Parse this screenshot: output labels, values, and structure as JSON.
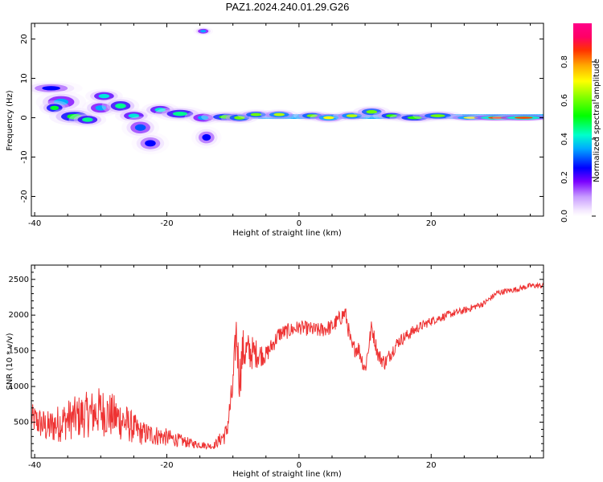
{
  "title": "PAZ1.2024.240.01.29.G26",
  "chart_data": [
    {
      "type": "heatmap",
      "xlabel": "Height of straight line (km)",
      "ylabel": "Frequency (Hz)",
      "xlim": [
        -40.5,
        37
      ],
      "ylim": [
        -25,
        24
      ],
      "xticks": [
        -40,
        -20,
        0,
        20
      ],
      "yticks": [
        -20,
        -10,
        0,
        10,
        20
      ],
      "colorbar": {
        "label": "Normalized spectral amplitude",
        "range": [
          0,
          1
        ],
        "ticks": [
          "0.0",
          "0.2",
          "0.4",
          "0.6",
          "0.8"
        ],
        "tick_values": [
          0.0,
          0.2,
          0.4,
          0.6,
          0.8
        ]
      },
      "blobs": [
        {
          "x": -37.5,
          "y": 7.5,
          "w": 2.5,
          "h": 1.0,
          "amp": 0.25
        },
        {
          "x": -36.0,
          "y": 4.0,
          "w": 2.0,
          "h": 1.5,
          "amp": 0.35
        },
        {
          "x": -37.0,
          "y": 2.5,
          "w": 1.2,
          "h": 1.0,
          "amp": 0.5
        },
        {
          "x": -34.0,
          "y": 0.3,
          "w": 2.0,
          "h": 1.2,
          "amp": 0.5
        },
        {
          "x": -32.0,
          "y": -0.5,
          "w": 1.5,
          "h": 1.0,
          "amp": 0.45
        },
        {
          "x": -30.0,
          "y": 2.5,
          "w": 1.5,
          "h": 1.2,
          "amp": 0.35
        },
        {
          "x": -29.5,
          "y": 5.5,
          "w": 1.5,
          "h": 1.0,
          "amp": 0.4
        },
        {
          "x": -27.0,
          "y": 3.0,
          "w": 1.5,
          "h": 1.2,
          "amp": 0.45
        },
        {
          "x": -25.0,
          "y": 0.5,
          "w": 1.5,
          "h": 1.0,
          "amp": 0.4
        },
        {
          "x": -24.0,
          "y": -2.5,
          "w": 1.5,
          "h": 1.5,
          "amp": 0.3
        },
        {
          "x": -22.5,
          "y": -6.5,
          "w": 1.5,
          "h": 1.5,
          "amp": 0.25
        },
        {
          "x": -21.0,
          "y": 2.0,
          "w": 1.5,
          "h": 1.0,
          "amp": 0.4
        },
        {
          "x": -18.0,
          "y": 1.0,
          "w": 2.0,
          "h": 1.0,
          "amp": 0.45
        },
        {
          "x": -14.5,
          "y": 22.0,
          "w": 0.8,
          "h": 0.6,
          "amp": 0.35
        },
        {
          "x": -14.5,
          "y": 0.0,
          "w": 1.5,
          "h": 1.0,
          "amp": 0.35
        },
        {
          "x": -14.0,
          "y": -5.0,
          "w": 1.2,
          "h": 1.5,
          "amp": 0.25
        },
        {
          "x": -11.0,
          "y": 0.2,
          "w": 2.0,
          "h": 0.8,
          "amp": 0.55
        },
        {
          "x": -9.0,
          "y": 0.0,
          "w": 1.5,
          "h": 0.8,
          "amp": 0.6
        },
        {
          "x": -6.5,
          "y": 0.8,
          "w": 1.5,
          "h": 0.7,
          "amp": 0.6
        },
        {
          "x": -3.0,
          "y": 0.8,
          "w": 1.5,
          "h": 0.7,
          "amp": 0.65
        },
        {
          "x": 2.0,
          "y": 0.5,
          "w": 1.5,
          "h": 0.7,
          "amp": 0.6
        },
        {
          "x": 4.5,
          "y": 0.0,
          "w": 1.5,
          "h": 0.7,
          "amp": 0.7
        },
        {
          "x": 8.0,
          "y": 0.5,
          "w": 1.5,
          "h": 0.7,
          "amp": 0.65
        },
        {
          "x": 11.0,
          "y": 1.5,
          "w": 1.5,
          "h": 0.8,
          "amp": 0.6
        },
        {
          "x": 14.0,
          "y": 0.5,
          "w": 1.5,
          "h": 0.7,
          "amp": 0.55
        },
        {
          "x": 17.5,
          "y": 0.0,
          "w": 2.0,
          "h": 0.7,
          "amp": 0.55
        },
        {
          "x": 21.0,
          "y": 0.5,
          "w": 2.0,
          "h": 0.7,
          "amp": 0.6
        },
        {
          "x": 26.0,
          "y": 0.0,
          "w": 2.0,
          "h": 0.5,
          "amp": 0.7
        },
        {
          "x": 30.0,
          "y": 0.0,
          "w": 2.5,
          "h": 0.5,
          "amp": 0.85
        },
        {
          "x": 34.0,
          "y": 0.0,
          "w": 2.5,
          "h": 0.5,
          "amp": 0.85
        }
      ],
      "ridge": {
        "x_start": -12,
        "x_end": 37,
        "y": 0.3,
        "amp": 0.35
      }
    },
    {
      "type": "line",
      "xlabel": "Height of straight line (km)",
      "ylabel": "SNR (10 * v/v)",
      "xlim": [
        -40.5,
        37
      ],
      "ylim": [
        0,
        2700
      ],
      "xticks": [
        -40,
        -20,
        0,
        20
      ],
      "yticks": [
        500,
        1000,
        1500,
        2000,
        2500
      ],
      "line_color": "#ee3333",
      "envelope": {
        "x": [
          -40.5,
          -38,
          -35,
          -30,
          -27,
          -24,
          -20,
          -16,
          -13,
          -11,
          -10,
          -9.5,
          -9,
          -8.5,
          -7,
          -5,
          -3,
          0,
          3,
          5,
          7,
          8,
          9,
          10,
          11,
          12,
          13,
          15,
          18,
          20,
          23,
          25,
          28,
          30,
          33,
          35,
          37
        ],
        "y": [
          500,
          350,
          450,
          550,
          450,
          300,
          250,
          180,
          150,
          300,
          900,
          1700,
          1000,
          1400,
          1400,
          1400,
          1700,
          1800,
          1750,
          1800,
          2000,
          1500,
          1500,
          1200,
          1800,
          1400,
          1300,
          1600,
          1800,
          1900,
          2000,
          2050,
          2150,
          2300,
          2350,
          2400,
          2400
        ]
      },
      "noise": {
        "x": [
          -40.5,
          -36,
          -30,
          -27,
          -24,
          -20,
          -16,
          -13,
          -11,
          -9,
          -5,
          0,
          10,
          20,
          30,
          37
        ],
        "amp": [
          400,
          550,
          700,
          600,
          350,
          250,
          120,
          80,
          300,
          700,
          250,
          200,
          250,
          120,
          80,
          80
        ]
      }
    }
  ]
}
